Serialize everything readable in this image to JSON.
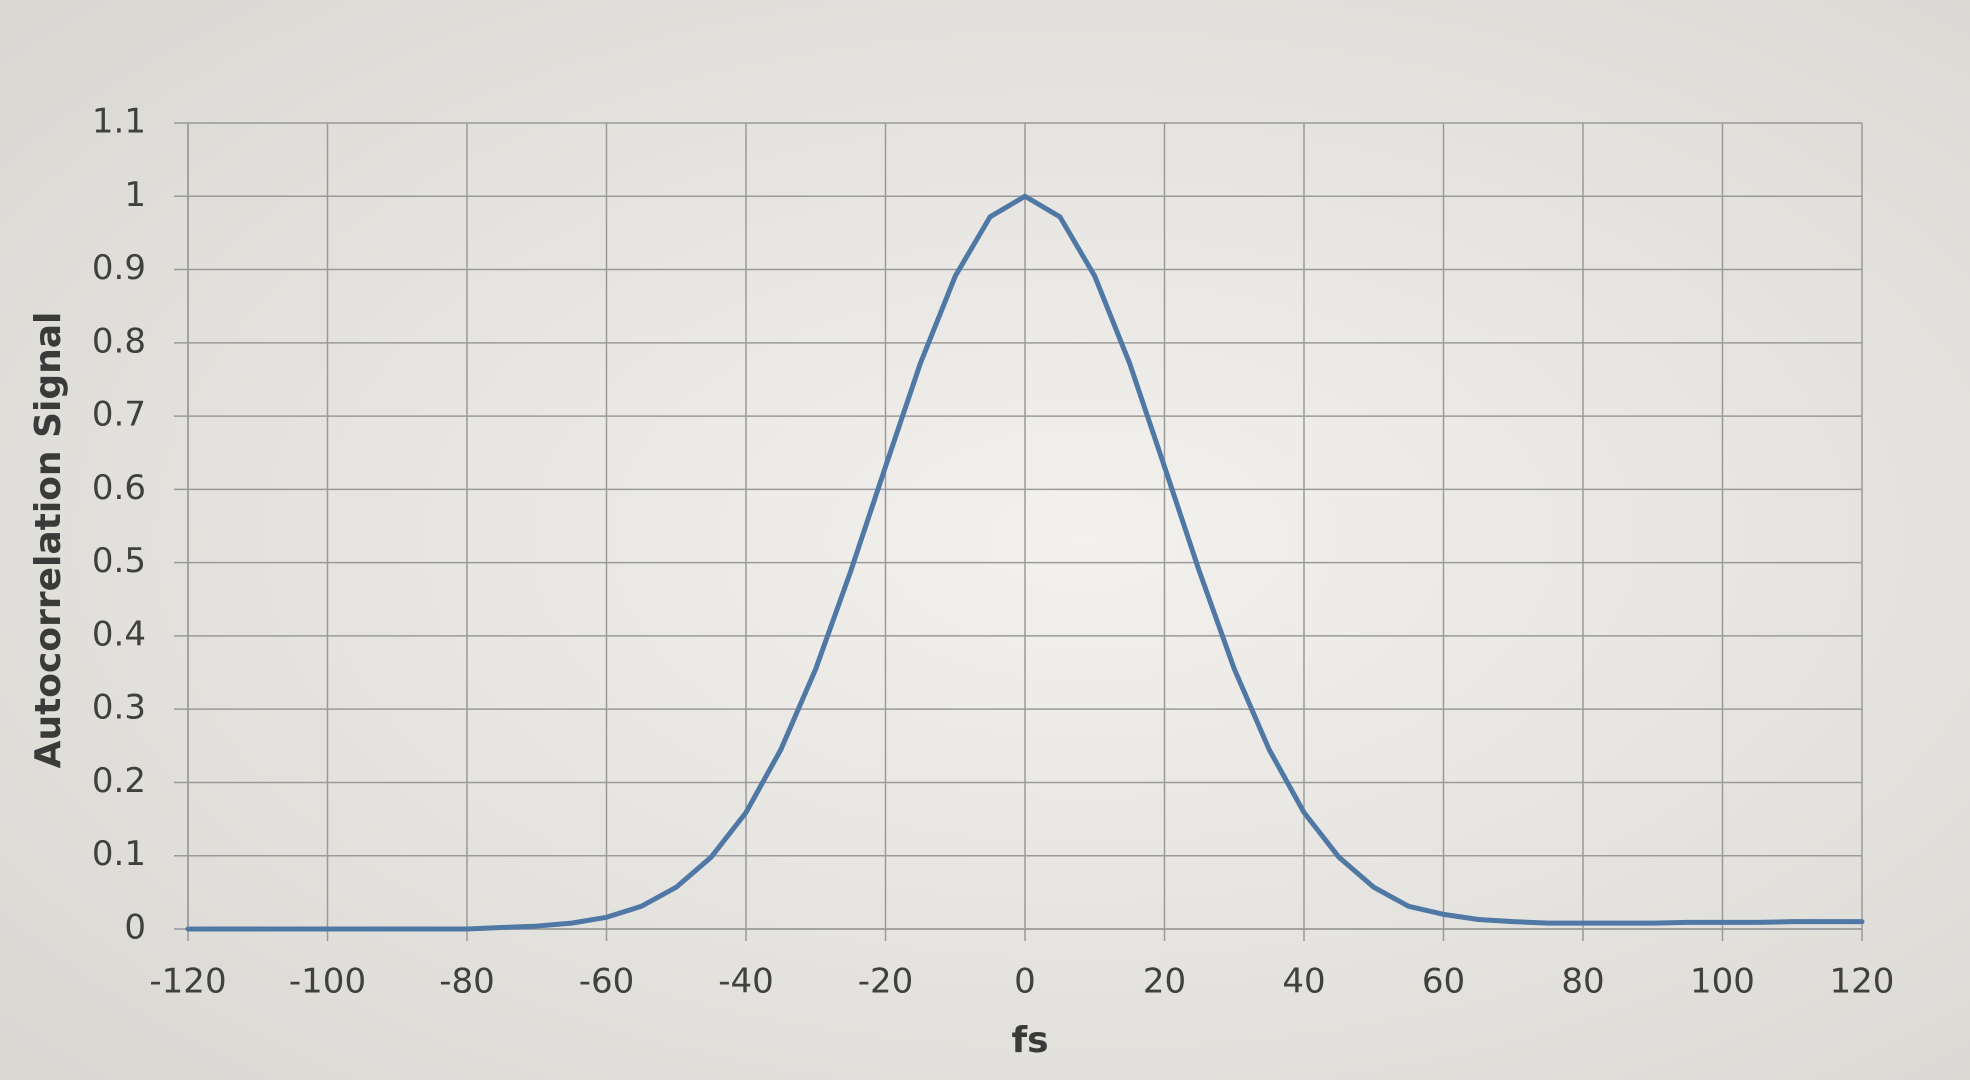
{
  "chart_data": {
    "type": "line",
    "x_label": "fs",
    "y_label": "Autocorrelation Signal",
    "x": [
      -120,
      -115,
      -110,
      -105,
      -100,
      -95,
      -90,
      -85,
      -80,
      -75,
      -70,
      -65,
      -60,
      -55,
      -50,
      -45,
      -40,
      -35,
      -30,
      -25,
      -20,
      -15,
      -10,
      -5,
      0,
      5,
      10,
      15,
      20,
      25,
      30,
      35,
      40,
      45,
      50,
      55,
      60,
      65,
      70,
      75,
      80,
      85,
      90,
      95,
      100,
      105,
      110,
      115,
      120
    ],
    "series": [
      {
        "name": "Autocorrelation",
        "color": "#4f78a4",
        "values": [
          0,
          0,
          0,
          0,
          0,
          0,
          0,
          0,
          0,
          0.002,
          0.004,
          0.008,
          0.016,
          0.031,
          0.057,
          0.098,
          0.159,
          0.245,
          0.355,
          0.488,
          0.631,
          0.772,
          0.891,
          0.972,
          1.0,
          0.972,
          0.891,
          0.772,
          0.631,
          0.488,
          0.355,
          0.245,
          0.159,
          0.098,
          0.057,
          0.031,
          0.02,
          0.013,
          0.01,
          0.008,
          0.008,
          0.008,
          0.008,
          0.009,
          0.009,
          0.009,
          0.01,
          0.01,
          0.01
        ]
      }
    ],
    "xlim": [
      -120,
      120
    ],
    "xticks": [
      -120,
      -100,
      -80,
      -60,
      -40,
      -20,
      0,
      20,
      40,
      60,
      80,
      100,
      120
    ],
    "ylim": [
      0,
      1.1
    ],
    "yticks": [
      0,
      0.1,
      0.2,
      0.3,
      0.4,
      0.5,
      0.6,
      0.7,
      0.8,
      0.9,
      1,
      1.1
    ],
    "grid": true,
    "legend": false
  }
}
